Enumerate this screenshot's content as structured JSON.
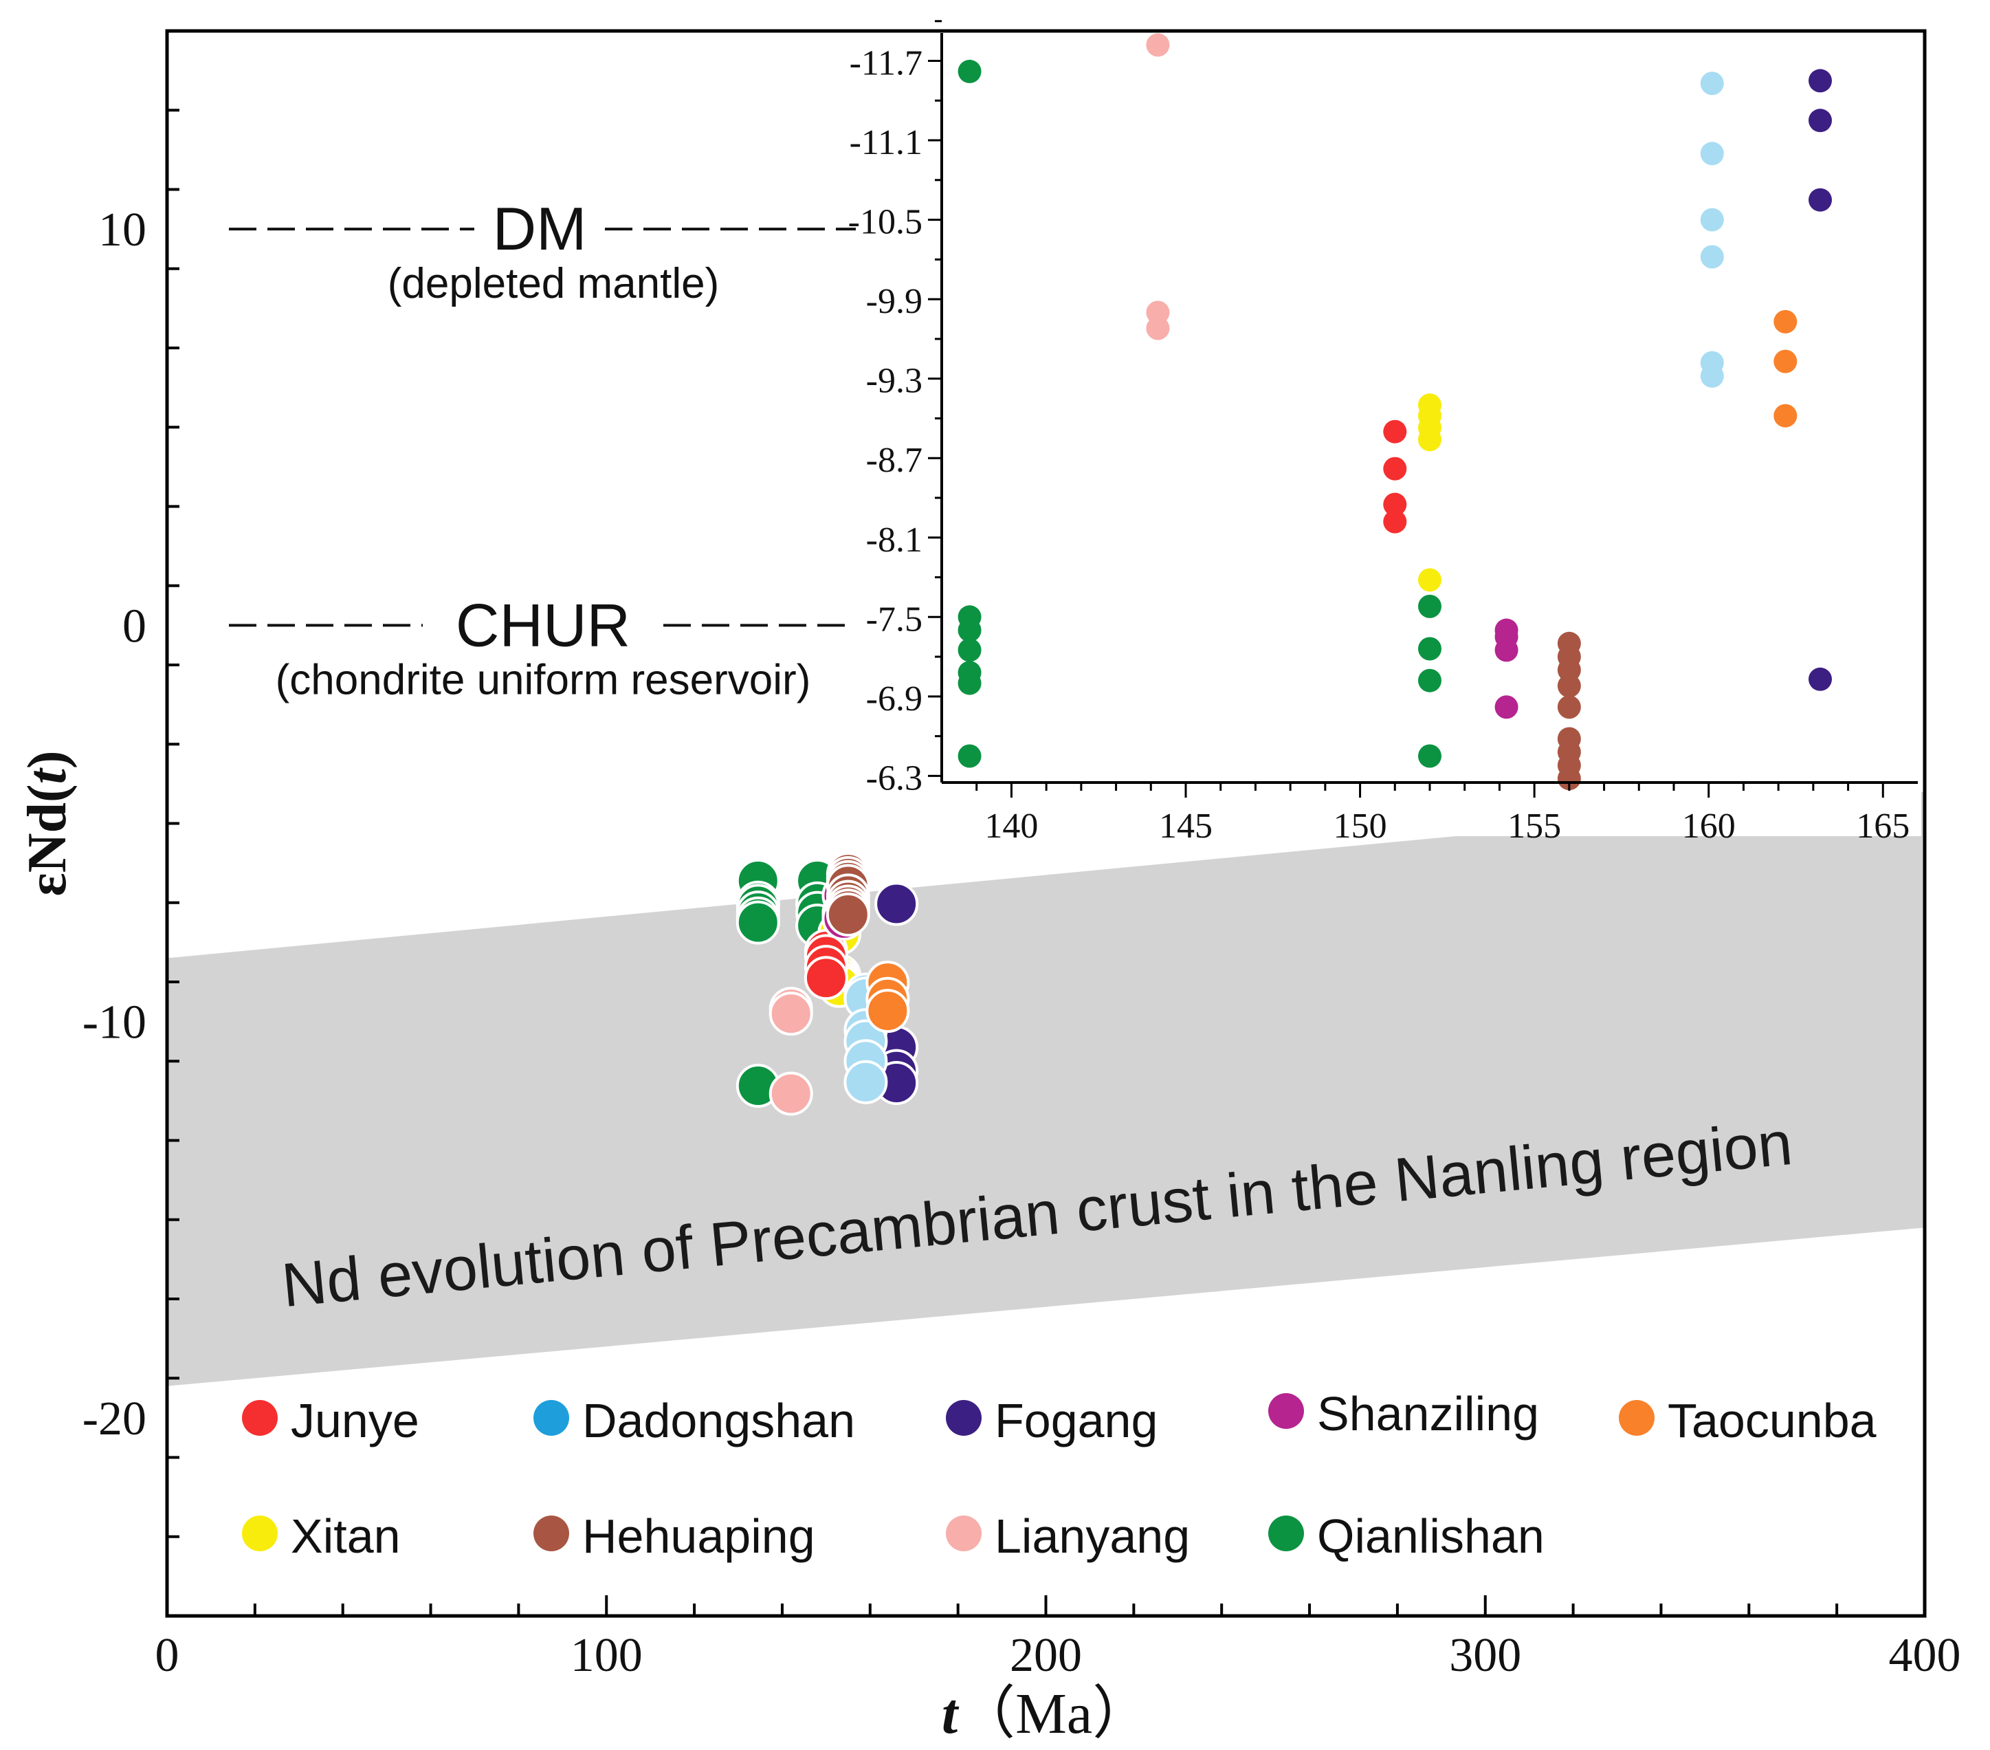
{
  "chart_data": [
    {
      "id": "main",
      "type": "scatter",
      "xlabel_italic": "t",
      "xlabel_unit": "（Ma）",
      "ylabel_prefix": "εNd(",
      "ylabel_italic": "t",
      "ylabel_suffix": ")",
      "xlim": [
        0,
        400
      ],
      "ylim": [
        -25,
        15
      ],
      "x_ticks": [
        0,
        100,
        200,
        300,
        400
      ],
      "x_tick_labels": [
        "0",
        "100",
        "200",
        "300",
        "400"
      ],
      "x_minor_step": 20,
      "y_ticks": [
        -20,
        -10,
        0,
        10
      ],
      "y_tick_labels": [
        "-20",
        "-10",
        "0",
        "10"
      ],
      "y_minor_step": 2,
      "reference_lines": [
        {
          "name": "DM",
          "label": "DM",
          "sublabel": "(depleted mantle)",
          "y": 10
        },
        {
          "name": "CHUR",
          "label": "CHUR",
          "sublabel": "(chondrite uniform reservoir)",
          "y": 0
        }
      ],
      "band": {
        "label": "Nd evolution of Precambrian crust in the Nanling region",
        "upper": [
          [
            0,
            -8.4
          ],
          [
            400,
            -4.2
          ]
        ],
        "lower": [
          [
            0,
            -19.2
          ],
          [
            400,
            -15.2
          ]
        ],
        "color": "#d3d3d3"
      },
      "legend": [
        {
          "name": "Junye",
          "color": "#f52f2f"
        },
        {
          "name": "Dadongshan",
          "color": "#1e9edb"
        },
        {
          "name": "Fogang",
          "color": "#3c1f82"
        },
        {
          "name": "Shanziling",
          "color": "#b5248f"
        },
        {
          "name": "Taocunba",
          "color": "#f9812a"
        },
        {
          "name": "Xitan",
          "color": "#f8ec0c"
        },
        {
          "name": "Hehuaping",
          "color": "#a85643"
        },
        {
          "name": "Lianyang",
          "color": "#f8aeab"
        },
        {
          "name": "Qianlishan",
          "color": "#0b9342"
        }
      ]
    },
    {
      "id": "inset",
      "type": "scatter",
      "xlim": [
        138,
        166
      ],
      "ylim": [
        -11.9,
        -6.25
      ],
      "x_ticks": [
        140,
        145,
        150,
        155,
        160,
        165
      ],
      "x_tick_labels": [
        "140",
        "145",
        "150",
        "155",
        "160",
        "165"
      ],
      "y_ticks": [
        -6.3,
        -6.9,
        -7.5,
        -8.1,
        -8.7,
        -9.3,
        -9.9,
        -10.5,
        -11.1,
        -11.7
      ],
      "y_tick_labels": [
        "-6.3",
        "-6.9",
        "-7.5",
        "-8.1",
        "-8.7",
        "-9.3",
        "-9.9",
        "-10.5",
        "-11.1",
        "-11.7"
      ],
      "series": [
        {
          "name": "Qianlishan",
          "color": "#0b9342",
          "points": [
            [
              138.8,
              -6.45
            ],
            [
              138.8,
              -7.0
            ],
            [
              138.8,
              -7.08
            ],
            [
              138.8,
              -7.25
            ],
            [
              138.8,
              -7.4
            ],
            [
              138.8,
              -7.5
            ],
            [
              138.8,
              -11.62
            ],
            [
              152,
              -6.45
            ],
            [
              152,
              -7.02
            ],
            [
              152,
              -7.26
            ],
            [
              152,
              -7.58
            ]
          ]
        },
        {
          "name": "Xitan",
          "color": "#f8ec0c",
          "points": [
            [
              152,
              -7.78
            ],
            [
              152,
              -8.84
            ],
            [
              152,
              -8.93
            ],
            [
              152,
              -9.02
            ],
            [
              152,
              -9.1
            ]
          ]
        },
        {
          "name": "Junye",
          "color": "#f52f2f",
          "points": [
            [
              151,
              -8.22
            ],
            [
              151,
              -8.35
            ],
            [
              151,
              -8.62
            ],
            [
              151,
              -8.9
            ]
          ]
        },
        {
          "name": "Shanziling",
          "color": "#b5248f",
          "points": [
            [
              154.2,
              -6.82
            ],
            [
              154.2,
              -7.25
            ],
            [
              154.2,
              -7.35
            ],
            [
              154.2,
              -7.4
            ]
          ]
        },
        {
          "name": "Hehuaping",
          "color": "#a85643",
          "points": [
            [
              156,
              -6.28
            ],
            [
              156,
              -6.38
            ],
            [
              156,
              -6.48
            ],
            [
              156,
              -6.58
            ],
            [
              156,
              -6.82
            ],
            [
              156,
              -6.98
            ],
            [
              156,
              -7.1
            ],
            [
              156,
              -7.2
            ],
            [
              156,
              -7.3
            ]
          ]
        },
        {
          "name": "Fogang",
          "color": "#3c1f82",
          "points": [
            [
              163.2,
              -7.03
            ],
            [
              163.2,
              -10.65
            ],
            [
              163.2,
              -11.25
            ],
            [
              163.2,
              -11.55
            ]
          ]
        },
        {
          "name": "Lianyang",
          "color": "#f8aeab",
          "points": [
            [
              144.2,
              -9.68
            ],
            [
              144.2,
              -9.8
            ],
            [
              144.2,
              -11.82
            ]
          ]
        },
        {
          "name": "Dadongshan",
          "color": "#a7dcf3",
          "points": [
            [
              160.1,
              -9.32
            ],
            [
              160.1,
              -9.42
            ],
            [
              160.1,
              -10.22
            ],
            [
              160.1,
              -10.5
            ],
            [
              160.1,
              -11.0
            ],
            [
              160.1,
              -11.53
            ]
          ]
        },
        {
          "name": "Taocunba",
          "color": "#f9812a",
          "points": [
            [
              162.2,
              -9.02
            ],
            [
              162.2,
              -9.43
            ],
            [
              162.2,
              -9.73
            ]
          ]
        }
      ]
    }
  ]
}
